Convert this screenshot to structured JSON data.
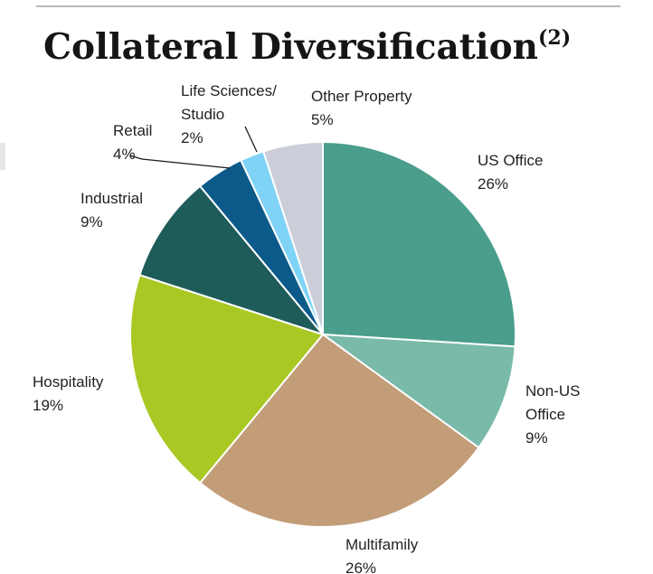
{
  "header": {
    "title": "Collateral Diversification",
    "footnote": "(2)"
  },
  "chart_data": {
    "type": "pie",
    "title": "Collateral Diversification",
    "unit": "%",
    "start": "12 o'clock, clockwise",
    "slices": [
      {
        "label": "US Office",
        "label_lines": [
          "US Office"
        ],
        "value": 26,
        "value_label": "26%",
        "color": "#4a9e8b"
      },
      {
        "label": "Non-US Office",
        "label_lines": [
          "Non-US",
          "Office"
        ],
        "value": 9,
        "value_label": "9%",
        "color": "#79baa9"
      },
      {
        "label": "Multifamily",
        "label_lines": [
          "Multifamily"
        ],
        "value": 26,
        "value_label": "26%",
        "color": "#c29d78"
      },
      {
        "label": "Hospitality",
        "label_lines": [
          "Hospitality"
        ],
        "value": 19,
        "value_label": "19%",
        "color": "#a9c823"
      },
      {
        "label": "Industrial",
        "label_lines": [
          "Industrial"
        ],
        "value": 9,
        "value_label": "9%",
        "color": "#1e5c5a"
      },
      {
        "label": "Retail",
        "label_lines": [
          "Retail"
        ],
        "value": 4,
        "value_label": "4%",
        "color": "#0c5a8a"
      },
      {
        "label": "Life Sciences/ Studio",
        "label_lines": [
          "Life Sciences/",
          "Studio"
        ],
        "value": 2,
        "value_label": "2%",
        "color": "#7fd3f7"
      },
      {
        "label": "Other Property",
        "label_lines": [
          "Other Property"
        ],
        "value": 5,
        "value_label": "5%",
        "color": "#cbced9"
      }
    ]
  }
}
